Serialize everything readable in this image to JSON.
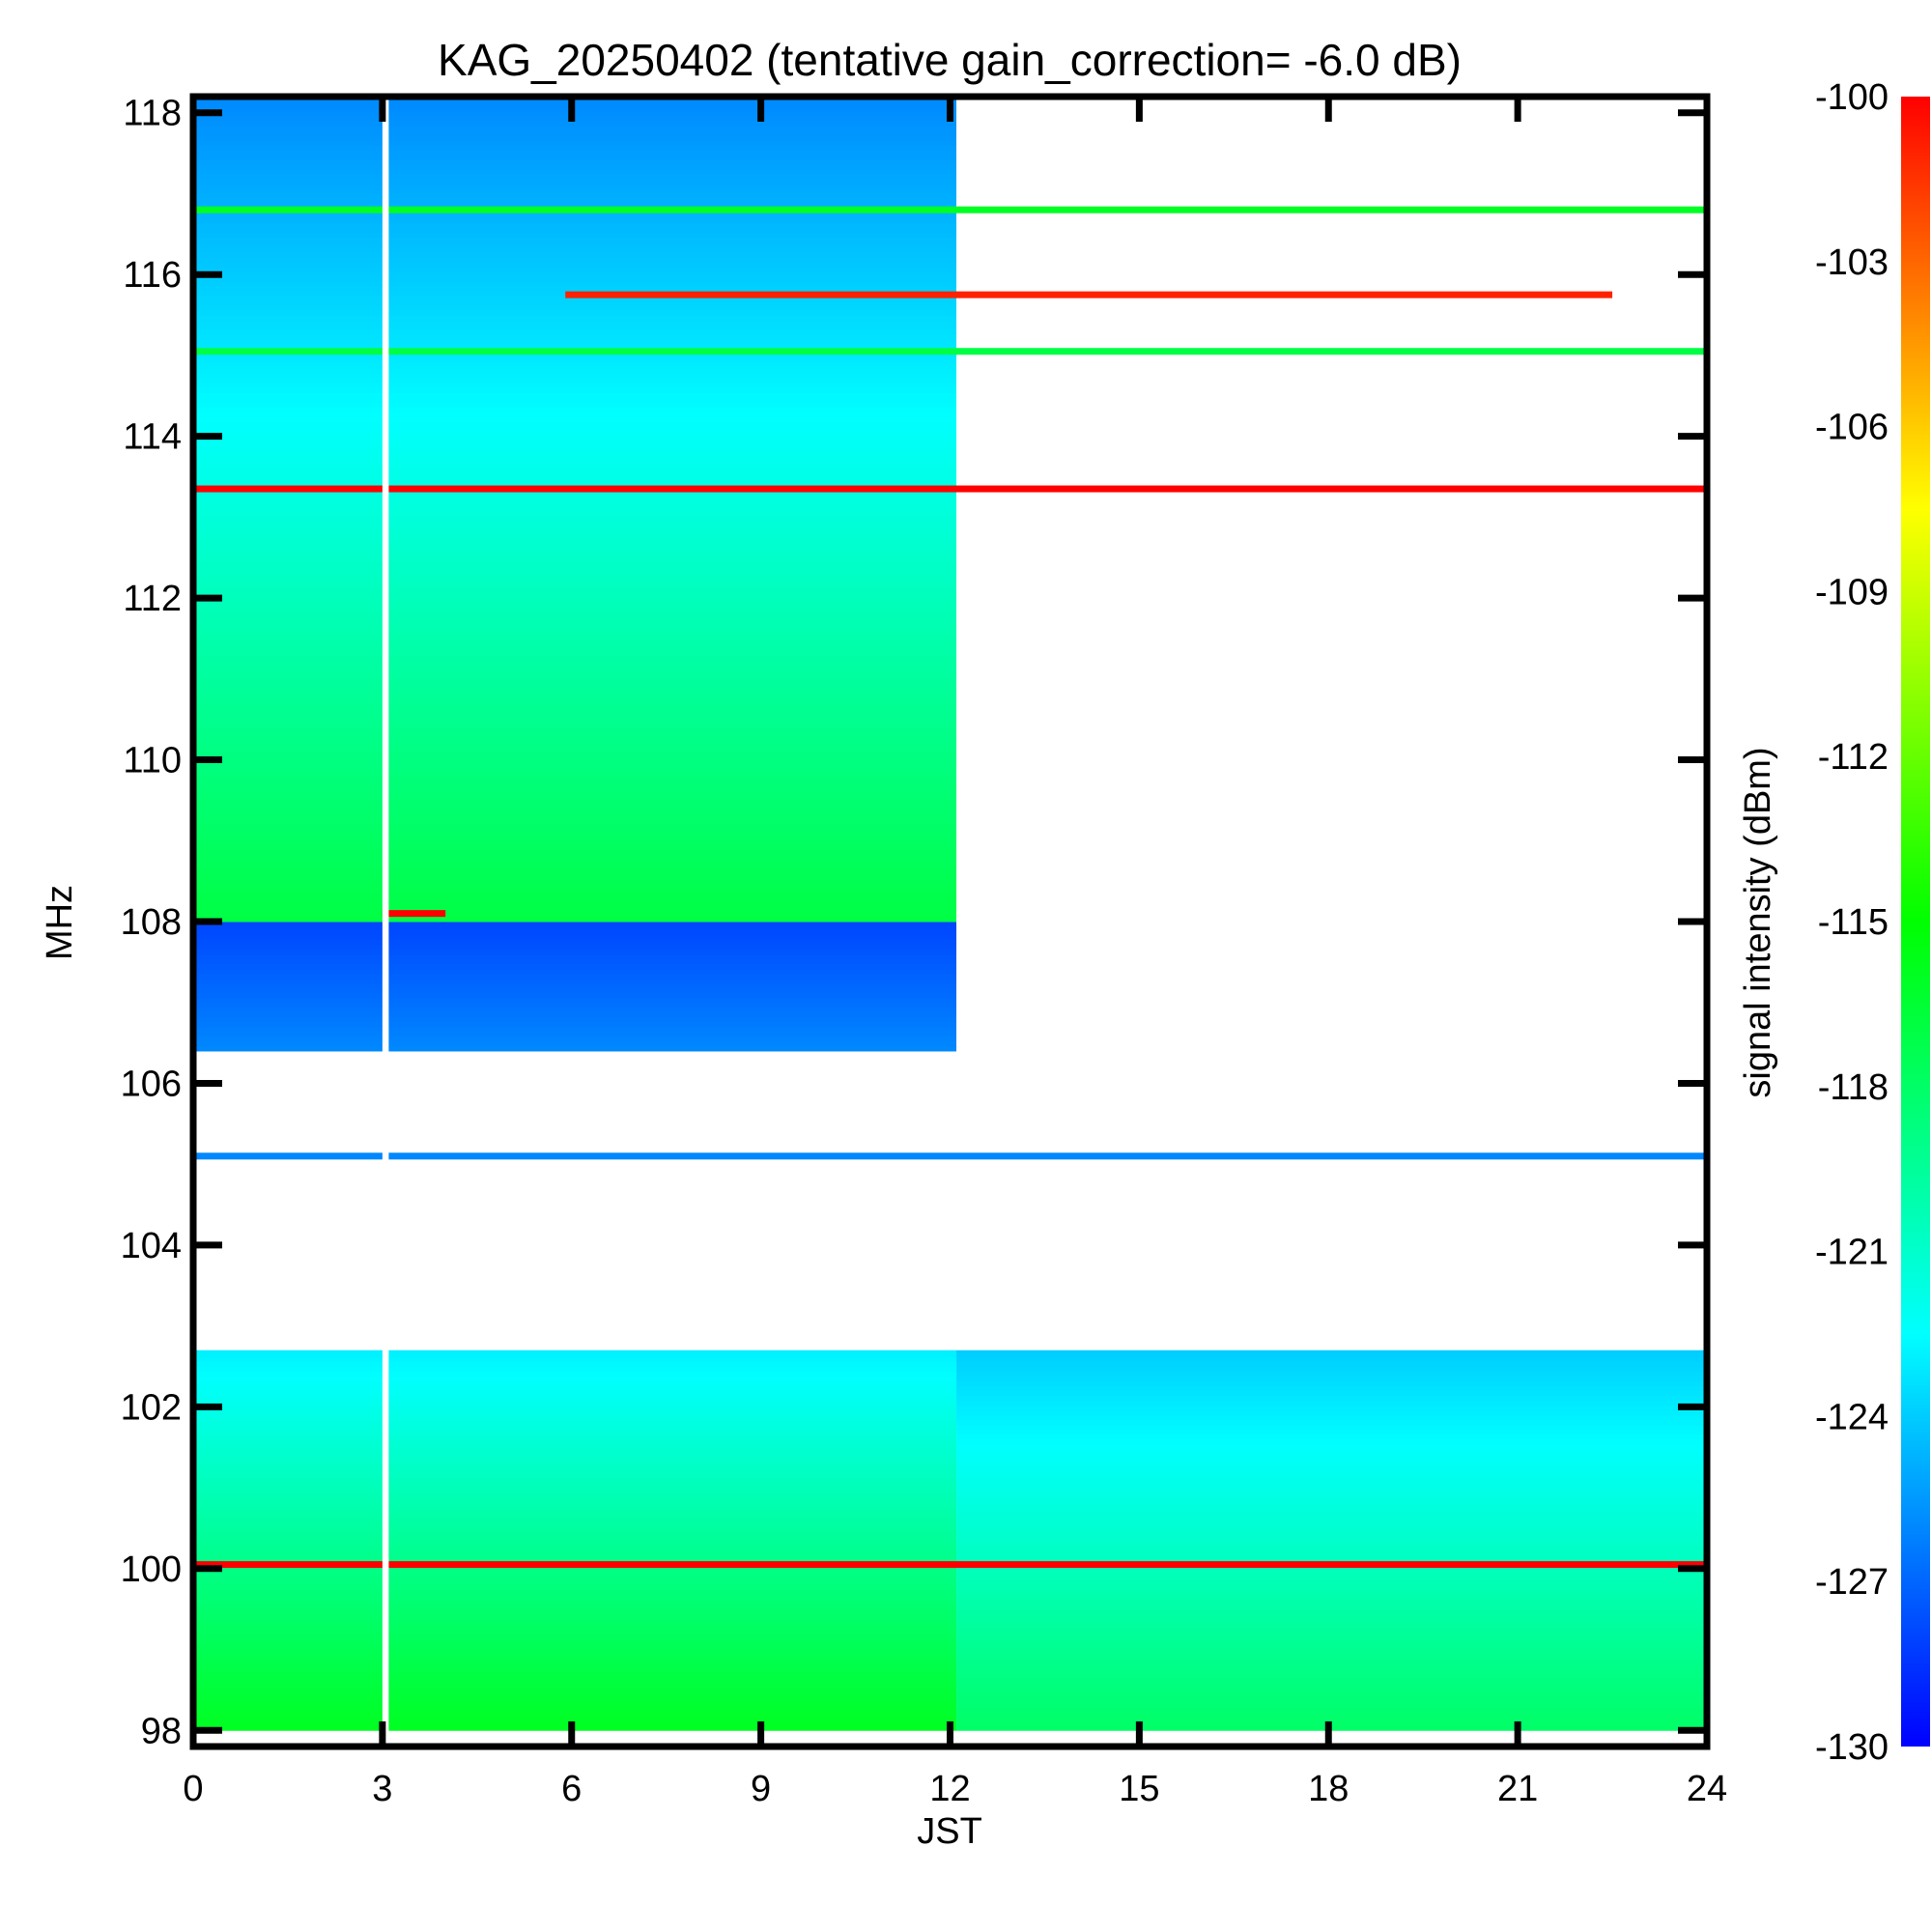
{
  "chart_data": {
    "type": "heatmap",
    "title": "KAG_20250402 (tentative gain_correction= -6.0 dB)",
    "xlabel": "JST",
    "ylabel": "MHz",
    "xlim": [
      0,
      24
    ],
    "ylim": [
      97.8,
      118.2
    ],
    "xticks": [
      "0",
      "3",
      "6",
      "9",
      "12",
      "15",
      "18",
      "21",
      "24"
    ],
    "yticks": [
      "98",
      "100",
      "102",
      "104",
      "106",
      "108",
      "110",
      "112",
      "114",
      "116",
      "118"
    ],
    "colorbar": {
      "label": "signal intensity (dBm)",
      "range": [
        -130,
        -100
      ],
      "ticks": [
        "-100",
        "-103",
        "-106",
        "-109",
        "-112",
        "-115",
        "-118",
        "-121",
        "-124",
        "-127",
        "-130"
      ],
      "colormap": [
        "#0000ff",
        "#00ffff",
        "#00ff00",
        "#ffff00",
        "#ff0000"
      ]
    },
    "data_gaps": [
      {
        "time": [
          3.0,
          3.1
        ],
        "freq": [
          97.8,
          118.2
        ]
      }
    ],
    "regions": [
      {
        "name": "",
        "time": [
          0,
          12.1
        ],
        "freq": [
          98.0,
          102.7
        ],
        "dbm_low": -123,
        "dbm_high": -116
      },
      {
        "name": "",
        "time": [
          12.1,
          24
        ],
        "freq": [
          98.0,
          102.7
        ],
        "dbm_low": -124,
        "dbm_high": -118
      },
      {
        "name": "",
        "time": [
          0,
          12.1
        ],
        "freq": [
          106.4,
          108.0
        ],
        "dbm_low": -128,
        "dbm_high": -126
      },
      {
        "name": "",
        "time": [
          0,
          12.1
        ],
        "freq": [
          108.0,
          118.2
        ],
        "dbm_low": -126,
        "dbm_high": -117
      }
    ],
    "lines": [
      {
        "freq": 100.05,
        "time": [
          0,
          24
        ],
        "dbm": -100
      },
      {
        "freq": 105.1,
        "time": [
          0,
          24
        ],
        "dbm": -126
      },
      {
        "freq": 108.1,
        "time": [
          3.0,
          4.0
        ],
        "dbm": -100
      },
      {
        "freq": 113.35,
        "time": [
          0,
          24
        ],
        "dbm": -100
      },
      {
        "freq": 115.05,
        "time": [
          0,
          24
        ],
        "dbm": -117
      },
      {
        "freq": 115.75,
        "time": [
          5.9,
          22.5
        ],
        "dbm": -101
      },
      {
        "freq": 116.8,
        "time": [
          0,
          24
        ],
        "dbm": -116
      }
    ]
  }
}
